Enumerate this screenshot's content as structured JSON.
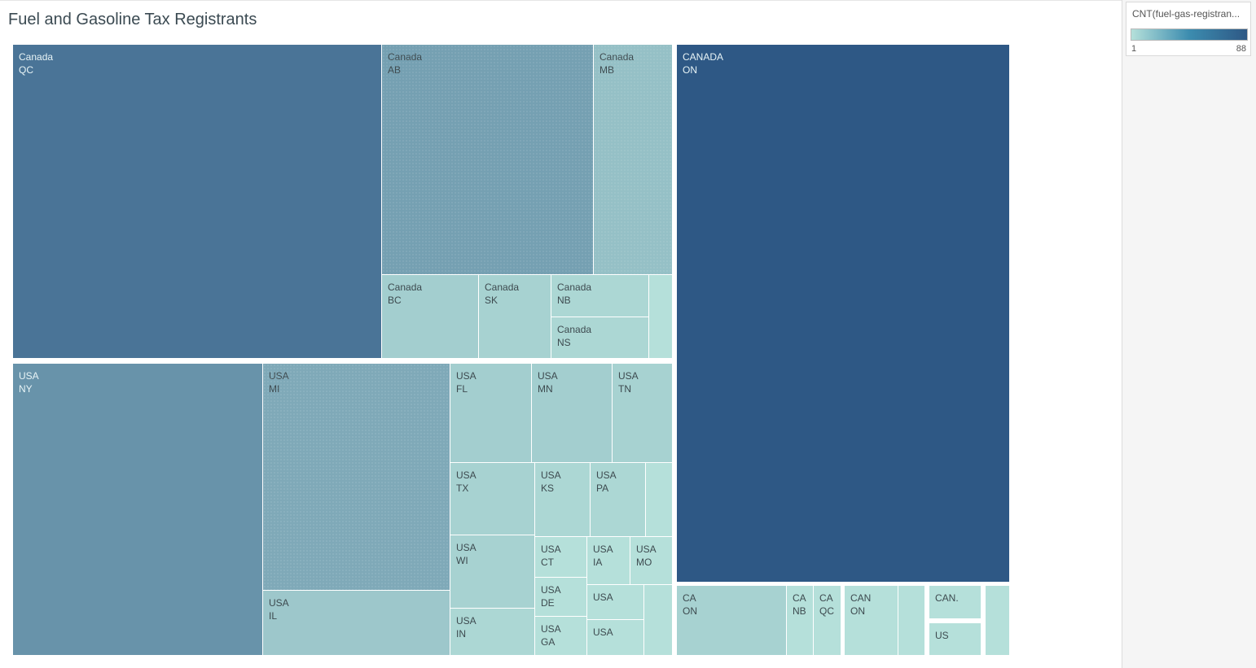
{
  "chart_data": {
    "type": "treemap",
    "title": "Fuel and Gasoline Tax Registrants",
    "measure": "CNT(fuel-gas-registrants)",
    "color_scale": {
      "min": 1,
      "max": 88,
      "min_color": "#b5e0da",
      "max_color": "#2e5885"
    },
    "tiles": [
      {
        "country": "CANADA",
        "region": "ON",
        "value": 88
      },
      {
        "country": "Canada",
        "region": "QC",
        "value": 60
      },
      {
        "country": "Canada",
        "region": "AB",
        "value": 26
      },
      {
        "country": "Canada",
        "region": "MB",
        "value": 9
      },
      {
        "country": "Canada",
        "region": "BC",
        "value": 4
      },
      {
        "country": "Canada",
        "region": "SK",
        "value": 3
      },
      {
        "country": "Canada",
        "region": "NB",
        "value": 2
      },
      {
        "country": "Canada",
        "region": "NS",
        "value": 2
      },
      {
        "country": "",
        "region": "",
        "value": 1
      },
      {
        "country": "USA",
        "region": "NY",
        "value": 35
      },
      {
        "country": "USA",
        "region": "MI",
        "value": 20
      },
      {
        "country": "USA",
        "region": "IL",
        "value": 6
      },
      {
        "country": "USA",
        "region": "FL",
        "value": 4
      },
      {
        "country": "USA",
        "region": "MN",
        "value": 4
      },
      {
        "country": "USA",
        "region": "TN",
        "value": 3
      },
      {
        "country": "USA",
        "region": "TX",
        "value": 3
      },
      {
        "country": "USA",
        "region": "KS",
        "value": 2
      },
      {
        "country": "USA",
        "region": "PA",
        "value": 2
      },
      {
        "country": "",
        "region": "",
        "value": 1
      },
      {
        "country": "USA",
        "region": "WI",
        "value": 3
      },
      {
        "country": "USA",
        "region": "IN",
        "value": 2
      },
      {
        "country": "USA",
        "region": "CT",
        "value": 1
      },
      {
        "country": "USA",
        "region": "DE",
        "value": 1
      },
      {
        "country": "USA",
        "region": "GA",
        "value": 1
      },
      {
        "country": "USA",
        "region": "IA",
        "value": 1
      },
      {
        "country": "USA",
        "region": "MO",
        "value": 1
      },
      {
        "country": "USA",
        "region": "",
        "value": 1
      },
      {
        "country": "USA",
        "region": "",
        "value": 1
      },
      {
        "country": "",
        "region": "",
        "value": 1
      },
      {
        "country": "CA",
        "region": "ON",
        "value": 3
      },
      {
        "country": "CA",
        "region": "NB",
        "value": 1
      },
      {
        "country": "CA",
        "region": "QC",
        "value": 1
      },
      {
        "country": "CAN",
        "region": "ON",
        "value": 1
      },
      {
        "country": "",
        "region": "",
        "value": 1
      },
      {
        "country": "CAN.",
        "region": "",
        "value": 1
      },
      {
        "country": "US",
        "region": "",
        "value": 1
      },
      {
        "country": "",
        "region": "",
        "value": 1
      }
    ]
  },
  "legend": {
    "title": "CNT(fuel-gas-registran...",
    "min_label": "1",
    "max_label": "88"
  }
}
